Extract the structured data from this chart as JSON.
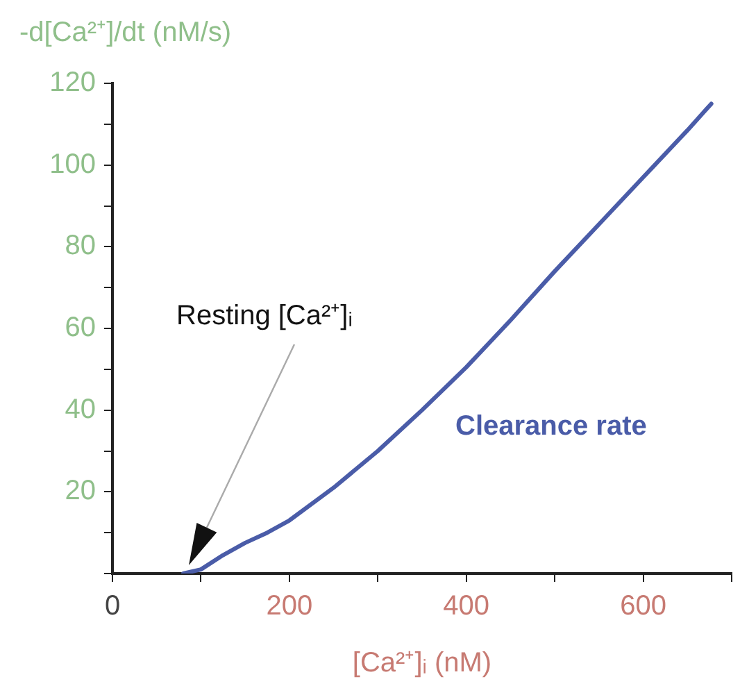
{
  "chart_data": {
    "type": "line",
    "xlabel": "[Ca²⁺]ᵢ (nM)",
    "ylabel": "-d[Ca²⁺]/dt (nM/s)",
    "x": [
      80,
      100,
      125,
      150,
      175,
      200,
      250,
      300,
      350,
      400,
      450,
      500,
      550,
      600,
      650,
      677
    ],
    "series": [
      {
        "name": "Clearance rate",
        "color": "#4a5ca8",
        "values": [
          0,
          1,
          4.5,
          7.5,
          10,
          13,
          21,
          30,
          40,
          50.5,
          62,
          74,
          85.5,
          97,
          108.5,
          115
        ]
      }
    ],
    "xlim": [
      0,
      700
    ],
    "ylim": [
      0,
      120
    ],
    "xticks": [
      0,
      {
        "value": 100,
        "label": null
      },
      200,
      {
        "value": 300,
        "label": null
      },
      400,
      {
        "value": 500,
        "label": null
      },
      600,
      {
        "value": 700,
        "label": null
      }
    ],
    "yticks": [
      {
        "value": 0,
        "label": null
      },
      {
        "value": 10,
        "label": null
      },
      20,
      {
        "value": 30,
        "label": null
      },
      40,
      {
        "value": 50,
        "label": null
      },
      60,
      {
        "value": 70,
        "label": null
      },
      80,
      {
        "value": 90,
        "label": null
      },
      100,
      {
        "value": 110,
        "label": null
      },
      120
    ],
    "annotations": [
      "Resting [Ca²⁺]ᵢ"
    ],
    "grid": false,
    "legend": false,
    "marker": "none",
    "line_style": "solid"
  }
}
